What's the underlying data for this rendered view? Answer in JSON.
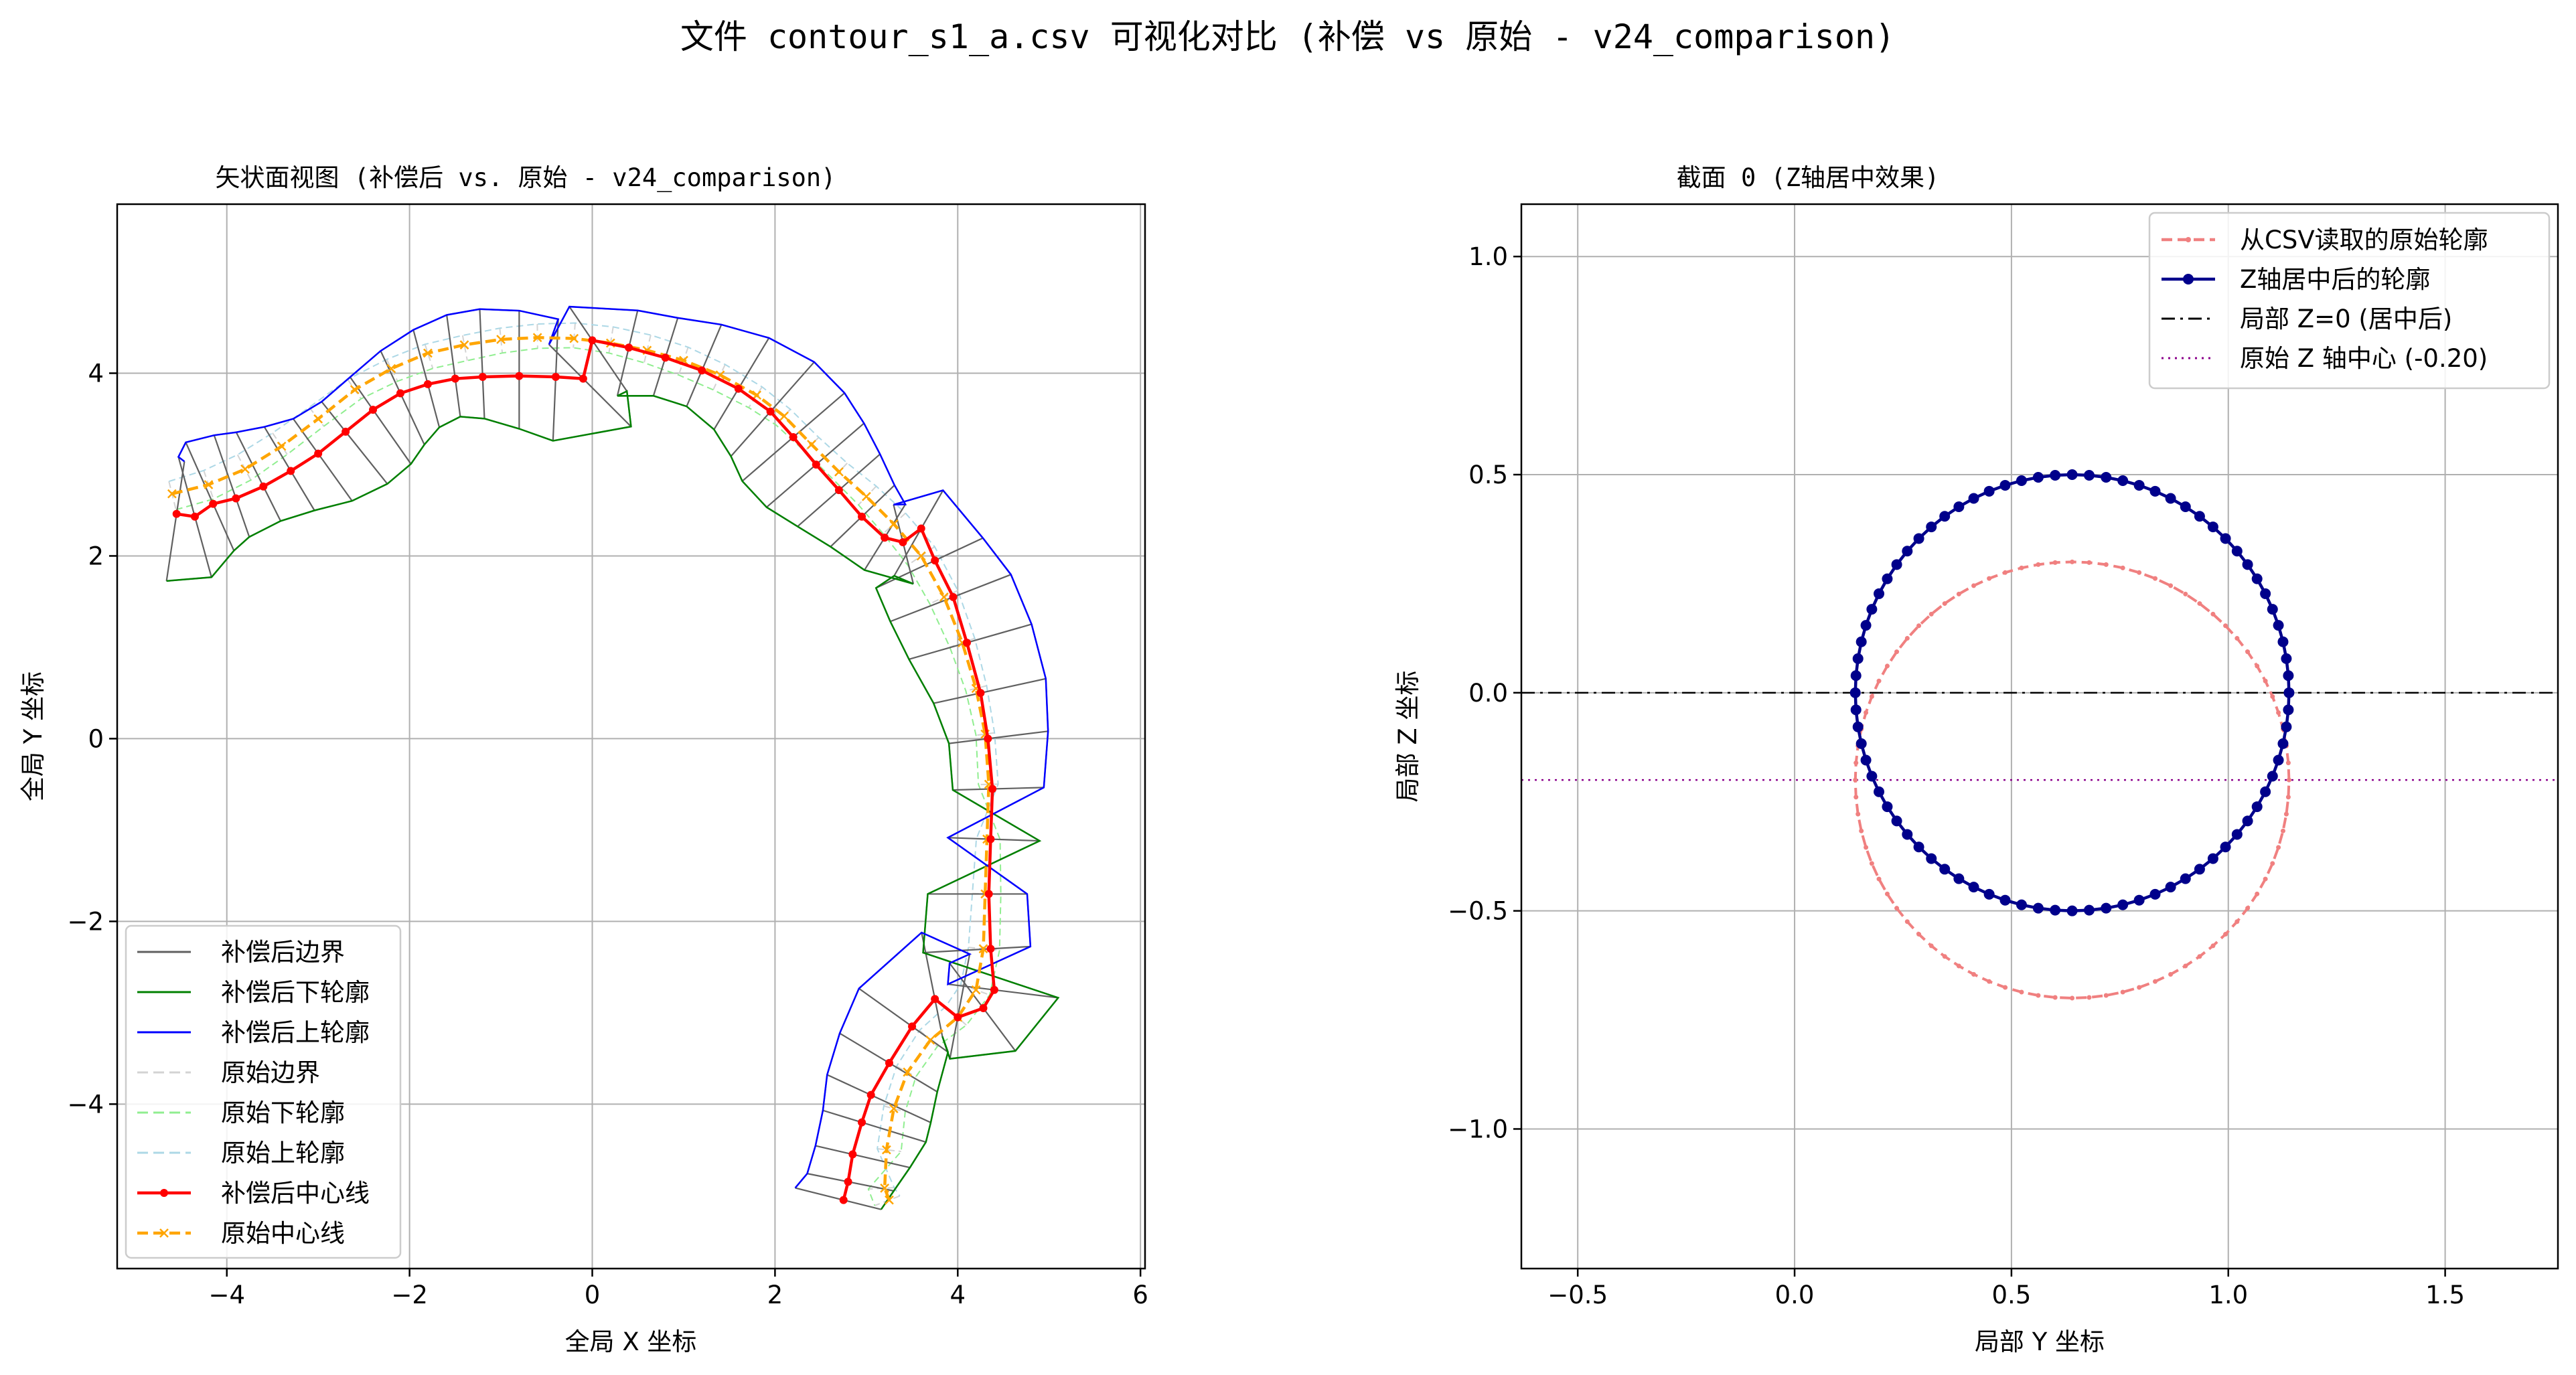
{
  "figure_title": "文件 contour_s1_a.csv 可视化对比 (补偿 vs 原始 - v24_comparison)",
  "chart_data": [
    {
      "type": "line",
      "title": "矢状面视图 (补偿后 vs. 原始 - v24_comparison)",
      "xlabel": "全局 X 坐标",
      "ylabel": "全局 Y 坐标",
      "xlim": [
        -5.2,
        6.05
      ],
      "ylim": [
        -5.8,
        5.85
      ],
      "grid": true,
      "xticks": [
        -4,
        -2,
        0,
        2,
        4,
        6
      ],
      "xtick_labels": [
        "−4",
        "−2",
        "0",
        "2",
        "4",
        "6"
      ],
      "yticks": [
        -4,
        -2,
        0,
        2,
        4
      ],
      "ytick_labels": [
        "−4",
        "−2",
        "0",
        "2",
        "4"
      ],
      "legend_position": "lower-left",
      "colors": {
        "boundary": "#606060",
        "lower": "#008000",
        "upper": "#0000ff",
        "orig_boundary": "#d3d3d3",
        "orig_lower": "#90ee90",
        "orig_upper": "#add8e6",
        "comp_center": "#ff0000",
        "orig_center": "#ffa500"
      },
      "legend": [
        {
          "key": "boundary",
          "label": "补偿后边界",
          "style": "solid",
          "marker": "none"
        },
        {
          "key": "lower",
          "label": "补偿后下轮廓",
          "style": "solid",
          "marker": "none"
        },
        {
          "key": "upper",
          "label": "补偿后上轮廓",
          "style": "solid",
          "marker": "none"
        },
        {
          "key": "orig_boundary",
          "label": "原始边界",
          "style": "dashed",
          "marker": "none"
        },
        {
          "key": "orig_lower",
          "label": "原始下轮廓",
          "style": "dashed",
          "marker": "none"
        },
        {
          "key": "orig_upper",
          "label": "原始上轮廓",
          "style": "dashed",
          "marker": "none"
        },
        {
          "key": "comp_center",
          "label": "补偿后中心线",
          "style": "solid",
          "marker": "dot"
        },
        {
          "key": "orig_center",
          "label": "原始中心线",
          "style": "dashed",
          "marker": "x"
        }
      ],
      "series": [
        {
          "name": "原始中心线",
          "points": [
            [
              -4.6,
              2.68
            ],
            [
              -4.2,
              2.78
            ],
            [
              -3.8,
              2.95
            ],
            [
              -3.4,
              3.2
            ],
            [
              -3.0,
              3.5
            ],
            [
              -2.6,
              3.82
            ],
            [
              -2.2,
              4.05
            ],
            [
              -1.8,
              4.22
            ],
            [
              -1.4,
              4.31
            ],
            [
              -1.0,
              4.37
            ],
            [
              -0.6,
              4.39
            ],
            [
              -0.2,
              4.38
            ],
            [
              0.2,
              4.33
            ],
            [
              0.6,
              4.25
            ],
            [
              1.0,
              4.14
            ],
            [
              1.4,
              3.98
            ],
            [
              1.8,
              3.76
            ],
            [
              2.1,
              3.53
            ],
            [
              2.4,
              3.22
            ],
            [
              2.7,
              2.92
            ],
            [
              3.0,
              2.65
            ],
            [
              3.3,
              2.35
            ],
            [
              3.6,
              2.0
            ],
            [
              3.85,
              1.55
            ],
            [
              4.05,
              1.05
            ],
            [
              4.2,
              0.55
            ],
            [
              4.3,
              0.05
            ],
            [
              4.34,
              -0.5
            ],
            [
              4.32,
              -1.1
            ],
            [
              4.3,
              -1.7
            ],
            [
              4.28,
              -2.3
            ],
            [
              4.2,
              -2.75
            ],
            [
              4.0,
              -3.05
            ],
            [
              3.7,
              -3.3
            ],
            [
              3.45,
              -3.65
            ],
            [
              3.3,
              -4.05
            ],
            [
              3.22,
              -4.5
            ],
            [
              3.2,
              -4.92
            ],
            [
              3.25,
              -5.05
            ]
          ]
        },
        {
          "name": "补偿后中心线",
          "points": [
            [
              -4.55,
              2.46
            ],
            [
              -4.35,
              2.43
            ],
            [
              -4.15,
              2.57
            ],
            [
              -3.9,
              2.63
            ],
            [
              -3.6,
              2.76
            ],
            [
              -3.3,
              2.93
            ],
            [
              -3.0,
              3.12
            ],
            [
              -2.7,
              3.36
            ],
            [
              -2.4,
              3.6
            ],
            [
              -2.1,
              3.78
            ],
            [
              -1.8,
              3.88
            ],
            [
              -1.5,
              3.94
            ],
            [
              -1.2,
              3.96
            ],
            [
              -0.8,
              3.97
            ],
            [
              -0.4,
              3.96
            ],
            [
              -0.1,
              3.94
            ],
            [
              0.0,
              4.36
            ],
            [
              0.4,
              4.28
            ],
            [
              0.8,
              4.17
            ],
            [
              1.2,
              4.03
            ],
            [
              1.6,
              3.83
            ],
            [
              1.95,
              3.58
            ],
            [
              2.2,
              3.3
            ],
            [
              2.45,
              3.0
            ],
            [
              2.7,
              2.72
            ],
            [
              2.95,
              2.43
            ],
            [
              3.2,
              2.2
            ],
            [
              3.4,
              2.15
            ],
            [
              3.6,
              2.3
            ],
            [
              3.75,
              1.95
            ],
            [
              3.95,
              1.55
            ],
            [
              4.1,
              1.05
            ],
            [
              4.25,
              0.5
            ],
            [
              4.33,
              0.0
            ],
            [
              4.38,
              -0.55
            ],
            [
              4.36,
              -1.1
            ],
            [
              4.34,
              -1.7
            ],
            [
              4.36,
              -2.3
            ],
            [
              4.4,
              -2.75
            ],
            [
              4.28,
              -2.95
            ],
            [
              4.0,
              -3.05
            ],
            [
              3.75,
              -2.85
            ],
            [
              3.5,
              -3.15
            ],
            [
              3.25,
              -3.55
            ],
            [
              3.05,
              -3.9
            ],
            [
              2.95,
              -4.2
            ],
            [
              2.85,
              -4.55
            ],
            [
              2.8,
              -4.85
            ],
            [
              2.75,
              -5.05
            ]
          ]
        }
      ]
    },
    {
      "type": "line",
      "title": "截面 0 (Z轴居中效果)",
      "xlabel": "局部 Y 坐标",
      "ylabel": "局部 Z 坐标",
      "xlim": [
        -0.63,
        1.76
      ],
      "ylim": [
        -1.32,
        1.12
      ],
      "grid": true,
      "xticks": [
        -0.5,
        0.0,
        0.5,
        1.0,
        1.5
      ],
      "xtick_labels": [
        "−0.5",
        "0.0",
        "0.5",
        "1.0",
        "1.5"
      ],
      "yticks": [
        -1.0,
        -0.5,
        0.0,
        0.5,
        1.0
      ],
      "ytick_labels": [
        "−1.0",
        "−0.5",
        "0.0",
        "0.5",
        "1.0"
      ],
      "legend_position": "upper-right",
      "legend": [
        {
          "key": "orig",
          "label": "从CSV读取的原始轮廓",
          "color": "#f08080",
          "style": "dashed",
          "marker": "dot"
        },
        {
          "key": "centered",
          "label": "Z轴居中后的轮廓",
          "color": "#00008b",
          "style": "solid",
          "marker": "dot"
        },
        {
          "key": "zero",
          "label": "局部 Z=0 (居中后)",
          "color": "#000000",
          "style": "dashdot",
          "marker": "none"
        },
        {
          "key": "center",
          "label": "原始 Z 轴中心 (-0.20)",
          "color": "#8b008b",
          "style": "dotted",
          "marker": "none"
        }
      ],
      "series": [
        {
          "name": "从CSV读取的原始轮廓",
          "shape": "circle",
          "center": [
            0.64,
            -0.2
          ],
          "radius": 0.5,
          "n_points": 80
        },
        {
          "name": "Z轴居中后的轮廓",
          "shape": "circle",
          "center": [
            0.64,
            0.0
          ],
          "radius": 0.5,
          "n_points": 80
        },
        {
          "name": "局部 Z=0 (居中后)",
          "shape": "hline",
          "y": 0.0
        },
        {
          "name": "原始 Z 轴中心 (-0.20)",
          "shape": "hline",
          "y": -0.2
        }
      ]
    }
  ]
}
